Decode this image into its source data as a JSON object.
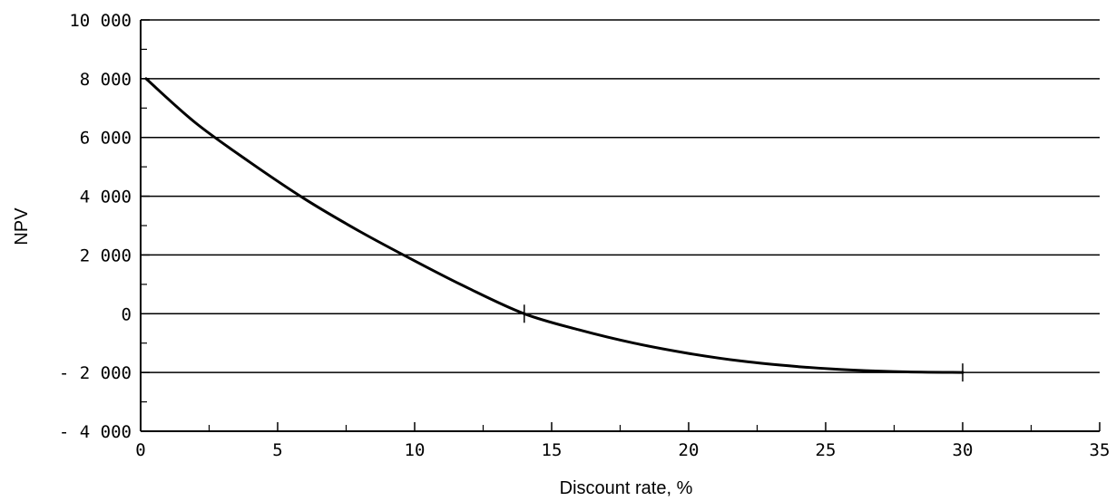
{
  "chart_data": {
    "type": "line",
    "xlabel": "Discount rate, %",
    "ylabel": "NPV",
    "xlim": [
      0,
      35
    ],
    "ylim": [
      -4000,
      10000
    ],
    "x_ticks": [
      0,
      5,
      10,
      15,
      20,
      25,
      30,
      35
    ],
    "x_tick_labels": [
      "0",
      "5",
      "10",
      "15",
      "20",
      "25",
      "30",
      "35"
    ],
    "y_ticks": [
      -4000,
      -2000,
      0,
      2000,
      4000,
      6000,
      8000,
      10000
    ],
    "y_tick_labels": [
      "- 4 000",
      "- 2 000",
      "0",
      "2 000",
      "4 000",
      "6 000",
      "8 000",
      "10 000"
    ],
    "x_minor_step": 2.5,
    "y_minor_step": 1000,
    "grid": "horizontal at major y ticks",
    "series": [
      {
        "x": [
          0.2,
          2,
          4,
          6,
          8,
          10,
          12,
          14,
          16,
          18,
          20,
          22,
          24,
          26,
          28,
          30
        ],
        "values": [
          8000,
          6500,
          5150,
          3900,
          2800,
          1800,
          850,
          0,
          -550,
          -1000,
          -1350,
          -1620,
          -1800,
          -1920,
          -1980,
          -2000
        ]
      }
    ],
    "markers": [
      {
        "x": 14,
        "y": 0
      },
      {
        "x": 30,
        "y": -2000
      }
    ],
    "colors": {
      "line": "#000000",
      "grid": "#000000",
      "background": "#ffffff"
    }
  }
}
